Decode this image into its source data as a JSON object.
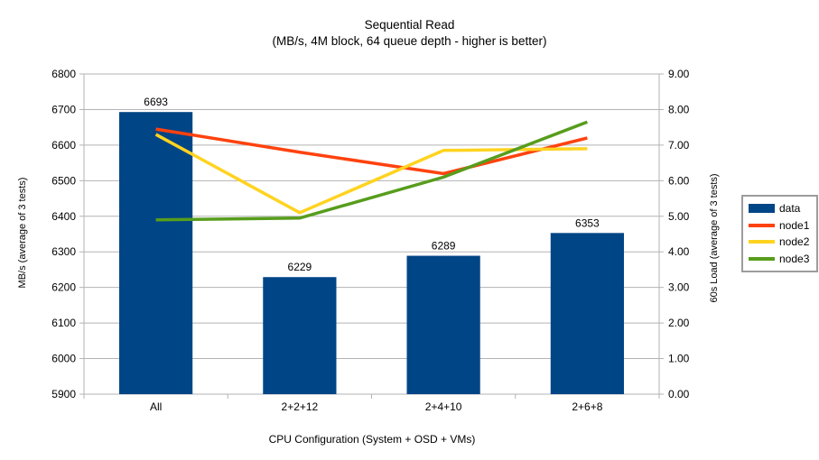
{
  "title": "Sequential Read",
  "subtitle": "(MB/s, 4M block, 64 queue depth - higher is better)",
  "chart_data": {
    "type": "bar",
    "subtype": "bar + line combo with dual y-axes",
    "categories": [
      "All",
      "2+2+12",
      "2+4+10",
      "2+6+8"
    ],
    "series": [
      {
        "name": "data",
        "type": "bar",
        "axis": "left",
        "color": "#004586",
        "values": [
          6693,
          6229,
          6289,
          6353
        ],
        "labels": [
          "6693",
          "6229",
          "6289",
          "6353"
        ]
      },
      {
        "name": "node1",
        "type": "line",
        "axis": "right",
        "color": "#FF420E",
        "values": [
          7.45,
          6.8,
          6.2,
          7.2
        ]
      },
      {
        "name": "node2",
        "type": "line",
        "axis": "right",
        "color": "#FFD320",
        "values": [
          7.3,
          5.1,
          6.85,
          6.9
        ]
      },
      {
        "name": "node3",
        "type": "line",
        "axis": "right",
        "color": "#579D1C",
        "values": [
          4.9,
          4.95,
          6.1,
          7.65
        ]
      }
    ],
    "left_axis": {
      "label": "MB/s (average of 3 tests)",
      "min": 5900,
      "max": 6800,
      "step": 100,
      "tick_labels": [
        "5900",
        "6000",
        "6100",
        "6200",
        "6300",
        "6400",
        "6500",
        "6600",
        "6700",
        "6800"
      ]
    },
    "right_axis": {
      "label": "60s Load (average of 3 tests)",
      "min": 0,
      "max": 9,
      "step": 1,
      "decimals": 2,
      "tick_labels": [
        "0.00",
        "1.00",
        "2.00",
        "3.00",
        "4.00",
        "5.00",
        "6.00",
        "7.00",
        "8.00",
        "9.00"
      ]
    },
    "x_axis": {
      "label": "CPU Configuration (System + OSD + VMs)"
    },
    "legend": {
      "position": "right",
      "entries": [
        {
          "label": "data",
          "color": "#004586",
          "type": "bar"
        },
        {
          "label": "node1",
          "color": "#FF420E",
          "type": "line"
        },
        {
          "label": "node2",
          "color": "#FFD320",
          "type": "line"
        },
        {
          "label": "node3",
          "color": "#579D1C",
          "type": "line"
        }
      ]
    },
    "grid": {
      "show": true,
      "color": "#b3b3b3"
    }
  }
}
